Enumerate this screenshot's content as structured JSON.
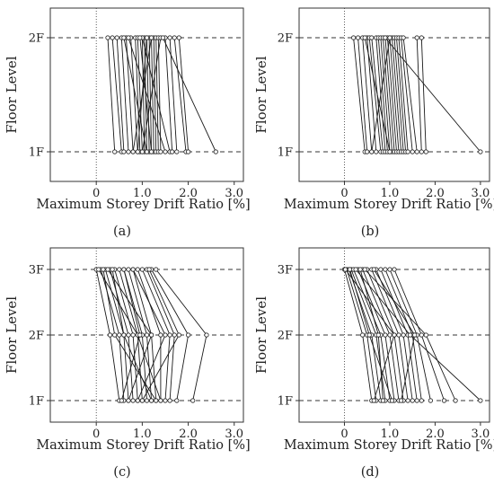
{
  "figure": {
    "panel_labels": [
      "(a)",
      "(b)",
      "(c)",
      "(d)"
    ]
  },
  "chart_data": [
    {
      "panel": "(a)",
      "type": "line",
      "xlabel": "Maximum Storey Drift Ratio [%]",
      "ylabel": "Floor Level",
      "categories": [
        "1F",
        "2F"
      ],
      "x_ticks": [
        "0",
        "1.0",
        "2.0",
        "3.0"
      ],
      "xlim": [
        -1.0,
        3.2
      ],
      "grid": "dashed at floor levels",
      "series": [
        {
          "values": [
            0.4,
            0.25
          ]
        },
        {
          "values": [
            0.55,
            0.35
          ]
        },
        {
          "values": [
            0.6,
            0.45
          ]
        },
        {
          "values": [
            0.7,
            0.55
          ]
        },
        {
          "values": [
            0.8,
            0.65
          ]
        },
        {
          "values": [
            0.9,
            0.75
          ]
        },
        {
          "values": [
            0.95,
            0.85
          ]
        },
        {
          "values": [
            1.0,
            0.9
          ]
        },
        {
          "values": [
            1.05,
            1.0
          ]
        },
        {
          "values": [
            1.1,
            1.05
          ]
        },
        {
          "values": [
            1.15,
            1.1
          ]
        },
        {
          "values": [
            1.2,
            1.15
          ]
        },
        {
          "values": [
            1.25,
            1.2
          ]
        },
        {
          "values": [
            1.3,
            1.25
          ]
        },
        {
          "values": [
            1.35,
            1.3
          ]
        },
        {
          "values": [
            1.4,
            1.35
          ]
        },
        {
          "values": [
            1.0,
            1.4
          ]
        },
        {
          "values": [
            0.8,
            1.2
          ]
        },
        {
          "values": [
            1.5,
            0.7
          ]
        },
        {
          "values": [
            1.6,
            1.0
          ]
        },
        {
          "values": [
            1.65,
            1.5
          ]
        },
        {
          "values": [
            1.75,
            1.6
          ]
        },
        {
          "values": [
            1.95,
            1.7
          ]
        },
        {
          "values": [
            2.0,
            1.8
          ]
        },
        {
          "values": [
            2.6,
            1.45
          ]
        },
        {
          "values": [
            0.9,
            1.1
          ]
        },
        {
          "values": [
            1.1,
            0.6
          ]
        },
        {
          "values": [
            1.2,
            0.95
          ]
        }
      ]
    },
    {
      "panel": "(b)",
      "type": "line",
      "xlabel": "Maximum Storey Drift Ratio [%]",
      "ylabel": "Floor Level",
      "categories": [
        "1F",
        "2F"
      ],
      "x_ticks": [
        "0",
        "1.0",
        "2.0",
        "3.0"
      ],
      "xlim": [
        -1.0,
        3.2
      ],
      "grid": "dashed at floor levels",
      "series": [
        {
          "values": [
            0.45,
            0.2
          ]
        },
        {
          "values": [
            0.5,
            0.3
          ]
        },
        {
          "values": [
            0.6,
            0.4
          ]
        },
        {
          "values": [
            0.7,
            0.5
          ]
        },
        {
          "values": [
            0.8,
            0.55
          ]
        },
        {
          "values": [
            0.85,
            0.6
          ]
        },
        {
          "values": [
            0.9,
            0.7
          ]
        },
        {
          "values": [
            0.95,
            0.75
          ]
        },
        {
          "values": [
            1.0,
            0.8
          ]
        },
        {
          "values": [
            1.05,
            0.85
          ]
        },
        {
          "values": [
            1.1,
            0.9
          ]
        },
        {
          "values": [
            1.15,
            0.95
          ]
        },
        {
          "values": [
            1.2,
            1.0
          ]
        },
        {
          "values": [
            1.25,
            1.05
          ]
        },
        {
          "values": [
            1.3,
            1.1
          ]
        },
        {
          "values": [
            1.35,
            1.15
          ]
        },
        {
          "values": [
            1.4,
            1.2
          ]
        },
        {
          "values": [
            1.5,
            1.25
          ]
        },
        {
          "values": [
            1.6,
            1.3
          ]
        },
        {
          "values": [
            1.7,
            1.6
          ]
        },
        {
          "values": [
            1.8,
            1.7
          ]
        },
        {
          "values": [
            3.0,
            0.9
          ]
        },
        {
          "values": [
            0.6,
            1.0
          ]
        },
        {
          "values": [
            1.0,
            0.45
          ]
        }
      ]
    },
    {
      "panel": "(c)",
      "type": "line",
      "xlabel": "Maximum Storey Drift Ratio [%]",
      "ylabel": "Floor Level",
      "categories": [
        "1F",
        "2F",
        "3F"
      ],
      "x_ticks": [
        "0",
        "1.0",
        "2.0",
        "3.0"
      ],
      "xlim": [
        -1.0,
        3.2
      ],
      "grid": "dashed at floor levels",
      "series": [
        {
          "values": [
            0.5,
            0.3,
            0.0
          ]
        },
        {
          "values": [
            0.6,
            0.5,
            0.1
          ]
        },
        {
          "values": [
            0.7,
            0.6,
            0.2
          ]
        },
        {
          "values": [
            0.8,
            0.7,
            0.3
          ]
        },
        {
          "values": [
            0.9,
            0.8,
            0.4
          ]
        },
        {
          "values": [
            1.0,
            0.9,
            0.5
          ]
        },
        {
          "values": [
            1.1,
            1.0,
            0.6
          ]
        },
        {
          "values": [
            1.2,
            1.1,
            0.7
          ]
        },
        {
          "values": [
            1.3,
            1.2,
            0.8
          ]
        },
        {
          "values": [
            1.4,
            1.4,
            0.9
          ]
        },
        {
          "values": [
            1.5,
            1.6,
            1.0
          ]
        },
        {
          "values": [
            1.6,
            1.7,
            1.1
          ]
        },
        {
          "values": [
            1.75,
            2.0,
            1.2
          ]
        },
        {
          "values": [
            2.1,
            2.4,
            1.3
          ]
        },
        {
          "values": [
            0.7,
            1.2,
            0.25
          ]
        },
        {
          "values": [
            1.2,
            0.6,
            0.35
          ]
        },
        {
          "values": [
            0.9,
            1.5,
            0.8
          ]
        },
        {
          "values": [
            1.4,
            0.9,
            0.05
          ]
        },
        {
          "values": [
            1.0,
            1.8,
            1.15
          ]
        },
        {
          "values": [
            0.55,
            0.95,
            0.6
          ]
        },
        {
          "values": [
            1.3,
            0.4,
            0.15
          ]
        }
      ]
    },
    {
      "panel": "(d)",
      "type": "line",
      "xlabel": "Maximum Storey Drift Ratio [%]",
      "ylabel": "Floor Level",
      "categories": [
        "1F",
        "2F",
        "3F"
      ],
      "x_ticks": [
        "0",
        "1.0",
        "2.0",
        "3.0"
      ],
      "xlim": [
        -1.0,
        3.2
      ],
      "grid": "dashed at floor levels",
      "series": [
        {
          "values": [
            0.6,
            0.4,
            0.0
          ]
        },
        {
          "values": [
            0.7,
            0.5,
            0.05
          ]
        },
        {
          "values": [
            0.8,
            0.6,
            0.1
          ]
        },
        {
          "values": [
            0.9,
            0.7,
            0.15
          ]
        },
        {
          "values": [
            1.0,
            0.8,
            0.2
          ]
        },
        {
          "values": [
            1.1,
            0.9,
            0.3
          ]
        },
        {
          "values": [
            1.2,
            1.0,
            0.4
          ]
        },
        {
          "values": [
            1.3,
            1.1,
            0.5
          ]
        },
        {
          "values": [
            1.4,
            1.2,
            0.6
          ]
        },
        {
          "values": [
            1.5,
            1.3,
            0.7
          ]
        },
        {
          "values": [
            1.6,
            1.4,
            0.8
          ]
        },
        {
          "values": [
            1.7,
            1.5,
            0.9
          ]
        },
        {
          "values": [
            1.9,
            1.6,
            1.0
          ]
        },
        {
          "values": [
            2.2,
            1.7,
            1.1
          ]
        },
        {
          "values": [
            2.45,
            1.8,
            0.45
          ]
        },
        {
          "values": [
            3.0,
            1.45,
            0.25
          ]
        },
        {
          "values": [
            0.65,
            1.1,
            0.02
          ]
        },
        {
          "values": [
            1.05,
            0.55,
            0.12
          ]
        },
        {
          "values": [
            1.25,
            1.55,
            0.65
          ]
        },
        {
          "values": [
            0.85,
            0.75,
            0.35
          ]
        }
      ]
    }
  ]
}
